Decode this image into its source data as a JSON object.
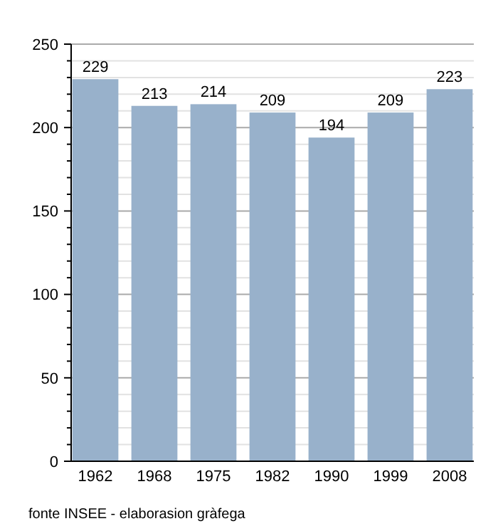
{
  "chart_data": {
    "type": "bar",
    "categories": [
      "1962",
      "1968",
      "1975",
      "1982",
      "1990",
      "1999",
      "2008"
    ],
    "values": [
      229,
      213,
      214,
      209,
      194,
      209,
      223
    ],
    "color": "#98b1cb",
    "data_labels": true,
    "grid": "y",
    "ylim": [
      0,
      250
    ],
    "yticks": [
      0,
      {
        "value": 10,
        "label": null
      },
      {
        "value": 20,
        "label": null
      },
      {
        "value": 30,
        "label": null
      },
      {
        "value": 40,
        "label": null
      },
      50,
      {
        "value": 60,
        "label": null
      },
      {
        "value": 70,
        "label": null
      },
      {
        "value": 80,
        "label": null
      },
      {
        "value": 90,
        "label": null
      },
      100,
      {
        "value": 110,
        "label": null
      },
      {
        "value": 120,
        "label": null
      },
      {
        "value": 130,
        "label": null
      },
      {
        "value": 140,
        "label": null
      },
      150,
      {
        "value": 160,
        "label": null
      },
      {
        "value": 170,
        "label": null
      },
      {
        "value": 180,
        "label": null
      },
      {
        "value": 190,
        "label": null
      },
      200,
      {
        "value": 210,
        "label": null
      },
      {
        "value": 220,
        "label": null
      },
      {
        "value": 230,
        "label": null
      },
      {
        "value": 240,
        "label": null
      },
      250
    ],
    "annotations": [
      "fonte INSEE - elaborasion gràfega"
    ]
  }
}
